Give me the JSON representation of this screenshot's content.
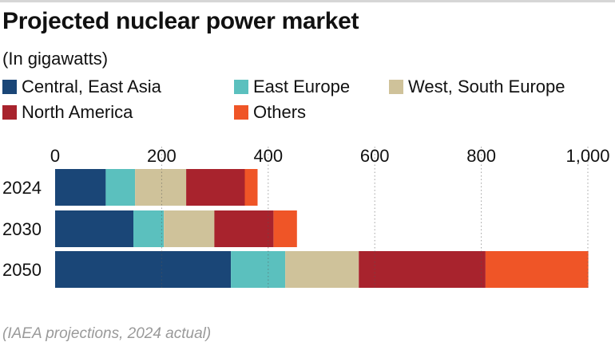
{
  "title": "Projected nuclear power market",
  "subtitle": "(In gigawatts)",
  "source": "(IAEA projections, 2024 actual)",
  "colors": {
    "Central, East Asia": "#1a4677",
    "East Europe": "#5bc0be",
    "West, South Europe": "#cfc29a",
    "North America": "#a8232d",
    "Others": "#ef5527"
  },
  "chart_data": {
    "type": "bar",
    "orientation": "horizontal",
    "stacked": true,
    "title": "Projected nuclear power market",
    "subtitle": "(In gigawatts)",
    "xlim": [
      0,
      1000
    ],
    "x_ticks": [
      0,
      200,
      400,
      600,
      800,
      1000
    ],
    "x_tick_labels": [
      "0",
      "200",
      "400",
      "600",
      "800",
      "1,000"
    ],
    "grid": "vertical dotted",
    "legend_position": "top",
    "categories": [
      "2024",
      "2030",
      "2050"
    ],
    "series": [
      {
        "name": "Central, East Asia",
        "values": [
          95,
          147,
          330
        ]
      },
      {
        "name": "East Europe",
        "values": [
          55,
          57,
          102
        ]
      },
      {
        "name": "West, South Europe",
        "values": [
          96,
          95,
          138
        ]
      },
      {
        "name": "North America",
        "values": [
          110,
          111,
          238
        ]
      },
      {
        "name": "Others",
        "values": [
          24,
          44,
          193
        ]
      }
    ]
  }
}
